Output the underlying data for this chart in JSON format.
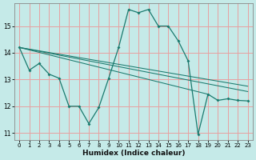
{
  "xlabel": "Humidex (Indice chaleur)",
  "background_color": "#c5eae8",
  "grid_color": "#e8a0a0",
  "line_color": "#1a7a6e",
  "xlim": [
    -0.5,
    23.5
  ],
  "ylim": [
    10.75,
    15.85
  ],
  "yticks": [
    11,
    12,
    13,
    14,
    15
  ],
  "xticks": [
    0,
    1,
    2,
    3,
    4,
    5,
    6,
    7,
    8,
    9,
    10,
    11,
    12,
    13,
    14,
    15,
    16,
    17,
    18,
    19,
    20,
    21,
    22,
    23
  ],
  "main_x": [
    0,
    1,
    2,
    3,
    4,
    5,
    6,
    7,
    8,
    9,
    10,
    11,
    12,
    13,
    14,
    15,
    16,
    17,
    18,
    19,
    20,
    21,
    22,
    23
  ],
  "main_y": [
    14.2,
    13.35,
    13.6,
    13.2,
    13.05,
    12.0,
    12.0,
    11.35,
    11.95,
    13.05,
    14.2,
    15.62,
    15.5,
    15.62,
    15.0,
    15.0,
    14.45,
    13.7,
    10.95,
    12.45,
    12.22,
    12.28,
    12.22,
    12.2
  ],
  "extra_lines": [
    {
      "x": [
        0,
        19
      ],
      "y": [
        14.2,
        12.45
      ]
    },
    {
      "x": [
        0,
        23
      ],
      "y": [
        14.2,
        12.55
      ]
    },
    {
      "x": [
        0,
        23
      ],
      "y": [
        14.2,
        12.75
      ]
    }
  ],
  "figsize": [
    3.2,
    2.0
  ],
  "dpi": 100
}
